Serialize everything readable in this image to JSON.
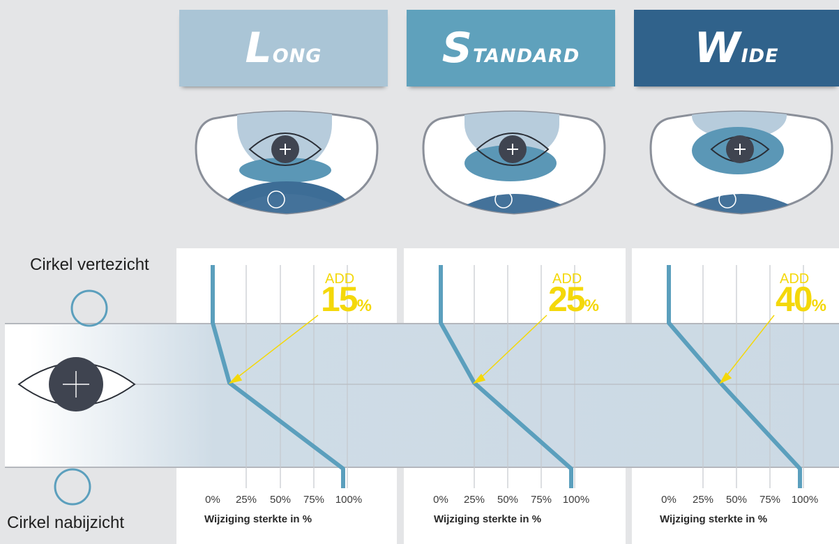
{
  "colors": {
    "long": "#aac5d6",
    "standard": "#5fa1bc",
    "wide": "#30628b",
    "curve": "#5b9fbd",
    "add_highlight": "#f4d80a",
    "eye_dark": "#3f4450"
  },
  "headers": [
    {
      "label": "Long"
    },
    {
      "label": "Standard"
    },
    {
      "label": "Wide"
    }
  ],
  "side_labels": {
    "far": "Cirkel vertezicht",
    "near": "Cirkel nabijzicht"
  },
  "panels": [
    {
      "add_label": "ADD",
      "add_value": "15",
      "add_unit": "%",
      "xlabel": "Wijziging sterkte in %",
      "ticks": [
        "0%",
        "25%",
        "50%",
        "75%",
        "100%"
      ]
    },
    {
      "add_label": "ADD",
      "add_value": "25",
      "add_unit": "%",
      "xlabel": "Wijziging sterkte in %",
      "ticks": [
        "0%",
        "25%",
        "50%",
        "75%",
        "100%"
      ]
    },
    {
      "add_label": "ADD",
      "add_value": "40",
      "add_unit": "%",
      "xlabel": "Wijziging sterkte in %",
      "ticks": [
        "0%",
        "25%",
        "50%",
        "75%",
        "100%"
      ]
    }
  ],
  "icons": [
    "eye-icon",
    "circle-far-icon",
    "circle-near-icon",
    "lens-icon",
    "plus-icon"
  ]
}
